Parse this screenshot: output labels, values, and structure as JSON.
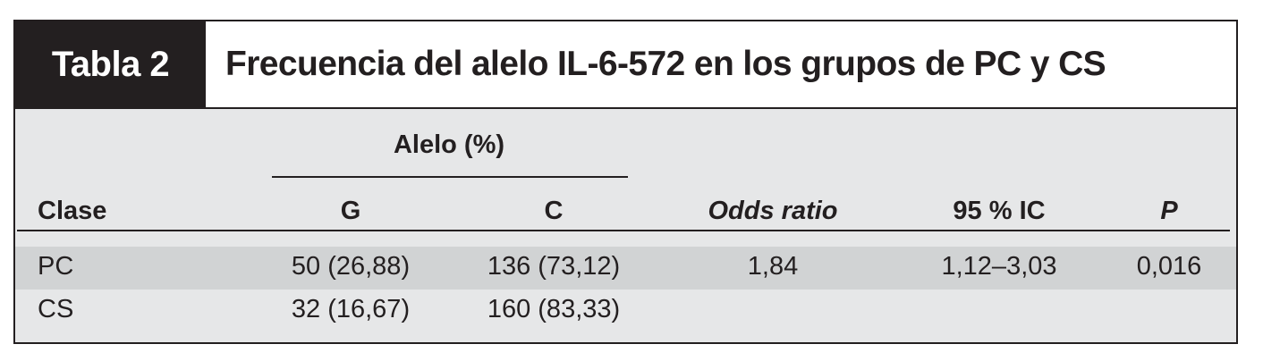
{
  "table": {
    "label": "Tabla 2",
    "title": "Frecuencia del alelo IL-6-572 en los grupos de PC y CS",
    "group_header": "Alelo (%)",
    "columns": [
      "Clase",
      "G",
      "C",
      "Odds ratio",
      "95 % IC",
      "P"
    ],
    "rows": [
      [
        "PC",
        "50 (26,88)",
        "136 (73,12)",
        "1,84",
        "1,12–3,03",
        "0,016"
      ],
      [
        "CS",
        "32 (16,67)",
        "160 (83,33)",
        "",
        "",
        ""
      ]
    ],
    "colors": {
      "header_bg": "#e6e7e8",
      "highlight_row_bg": "#d1d3d4",
      "label_bg": "#231f20"
    }
  }
}
